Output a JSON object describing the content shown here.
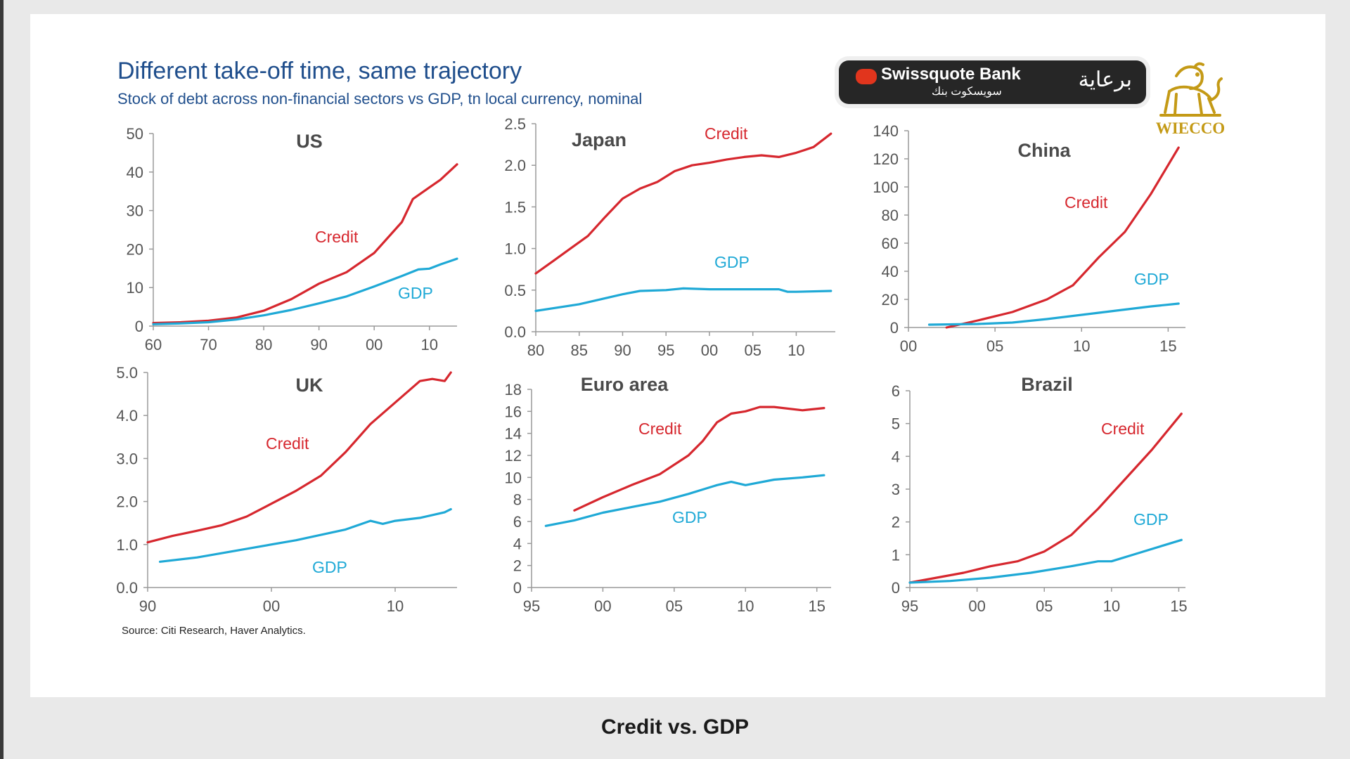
{
  "title": "Different take-off time, same trajectory",
  "subtitle": "Stock of debt across non-financial sectors vs GDP, tn local currency, nominal",
  "source": "Source: Citi Research, Haver Analytics.",
  "caption": "Credit vs. GDP",
  "sponsor": {
    "brand": "Swissquote Bank",
    "brand_arabic": "سويسكوت بنك",
    "sponsor_word": "برعاية"
  },
  "logo": {
    "text": "WIECCO",
    "icon": "lion-icon"
  },
  "colors": {
    "credit": "#d6272e",
    "gdp": "#1fa9d6",
    "title": "#1f4e8c"
  },
  "chart_data": [
    {
      "type": "line",
      "title": "US",
      "xlim": [
        60,
        115
      ],
      "ylim": [
        0,
        50
      ],
      "xticks": [
        [
          60,
          "60"
        ],
        [
          70,
          "70"
        ],
        [
          80,
          "80"
        ],
        [
          90,
          "90"
        ],
        [
          100,
          "00"
        ],
        [
          110,
          "10"
        ]
      ],
      "yticks": [
        [
          0,
          "0"
        ],
        [
          10,
          "10"
        ],
        [
          20,
          "20"
        ],
        [
          30,
          "30"
        ],
        [
          40,
          "40"
        ],
        [
          50,
          "50"
        ]
      ],
      "series": [
        {
          "name": "Credit",
          "x": [
            60,
            65,
            70,
            75,
            80,
            85,
            90,
            95,
            100,
            105,
            107,
            110,
            112,
            115
          ],
          "values": [
            0.8,
            1,
            1.4,
            2.2,
            4,
            7,
            11,
            14,
            19,
            27,
            33,
            36,
            38,
            42
          ]
        },
        {
          "name": "GDP",
          "x": [
            60,
            65,
            70,
            75,
            80,
            85,
            90,
            95,
            100,
            105,
            108,
            110,
            112,
            115
          ],
          "values": [
            0.5,
            0.7,
            1,
            1.7,
            2.8,
            4.2,
            5.9,
            7.7,
            10.3,
            13,
            14.7,
            14.9,
            16,
            17.5
          ]
        }
      ]
    },
    {
      "type": "line",
      "title": "Japan",
      "xlim": [
        80,
        114.5
      ],
      "ylim": [
        0,
        2.5
      ],
      "xticks": [
        [
          80,
          "80"
        ],
        [
          85,
          "85"
        ],
        [
          90,
          "90"
        ],
        [
          95,
          "95"
        ],
        [
          100,
          "00"
        ],
        [
          105,
          "05"
        ],
        [
          110,
          "10"
        ]
      ],
      "yticks": [
        [
          0,
          "0.0"
        ],
        [
          0.5,
          "0.5"
        ],
        [
          1,
          "1.0"
        ],
        [
          1.5,
          "1.5"
        ],
        [
          2,
          "2.0"
        ],
        [
          2.5,
          "2.5"
        ]
      ],
      "series": [
        {
          "name": "Credit",
          "x": [
            80,
            82,
            84,
            86,
            88,
            90,
            92,
            94,
            96,
            98,
            100,
            102,
            104,
            106,
            108,
            110,
            112,
            114
          ],
          "values": [
            0.7,
            0.85,
            1,
            1.15,
            1.38,
            1.6,
            1.72,
            1.8,
            1.93,
            2.0,
            2.03,
            2.07,
            2.1,
            2.12,
            2.1,
            2.15,
            2.22,
            2.38
          ]
        },
        {
          "name": "GDP",
          "x": [
            80,
            85,
            90,
            92,
            95,
            97,
            100,
            105,
            108,
            109,
            110,
            114
          ],
          "values": [
            0.25,
            0.33,
            0.45,
            0.49,
            0.5,
            0.52,
            0.51,
            0.51,
            0.51,
            0.48,
            0.48,
            0.49
          ]
        }
      ]
    },
    {
      "type": "line",
      "title": "China",
      "xlim": [
        0,
        16
      ],
      "ylim": [
        0,
        140
      ],
      "xticks": [
        [
          0,
          "00"
        ],
        [
          5,
          "05"
        ],
        [
          10,
          "10"
        ],
        [
          15,
          "15"
        ]
      ],
      "yticks": [
        [
          0,
          "0"
        ],
        [
          20,
          "20"
        ],
        [
          40,
          "40"
        ],
        [
          60,
          "60"
        ],
        [
          80,
          "80"
        ],
        [
          100,
          "100"
        ],
        [
          120,
          "120"
        ],
        [
          140,
          "140"
        ]
      ],
      "series": [
        {
          "name": "Credit",
          "x": [
            2.2,
            4,
            6,
            8,
            9.5,
            11,
            12.5,
            14,
            15.6
          ],
          "values": [
            0,
            5,
            11,
            20,
            30,
            50,
            68,
            95,
            128
          ]
        },
        {
          "name": "GDP",
          "x": [
            1.2,
            4,
            6,
            8,
            10,
            12,
            14,
            15.6
          ],
          "values": [
            2,
            2.5,
            3.5,
            6,
            9,
            12,
            15,
            17
          ]
        }
      ]
    },
    {
      "type": "line",
      "title": "UK",
      "xlim": [
        90,
        115
      ],
      "ylim": [
        0,
        5
      ],
      "xticks": [
        [
          90,
          "90"
        ],
        [
          100,
          "00"
        ],
        [
          110,
          "10"
        ]
      ],
      "yticks": [
        [
          0,
          "0.0"
        ],
        [
          1,
          "1.0"
        ],
        [
          2,
          "2.0"
        ],
        [
          3,
          "3.0"
        ],
        [
          4,
          "4.0"
        ],
        [
          5,
          "5.0"
        ]
      ],
      "series": [
        {
          "name": "Credit",
          "x": [
            90,
            92,
            94,
            96,
            98,
            100,
            102,
            104,
            106,
            108,
            110,
            112,
            113,
            114,
            114.5
          ],
          "values": [
            1.05,
            1.2,
            1.32,
            1.45,
            1.65,
            1.95,
            2.25,
            2.6,
            3.15,
            3.8,
            4.3,
            4.8,
            4.85,
            4.8,
            5.0
          ]
        },
        {
          "name": "GDP",
          "x": [
            91,
            94,
            98,
            102,
            106,
            108,
            109,
            110,
            112,
            114,
            114.5
          ],
          "values": [
            0.6,
            0.7,
            0.9,
            1.1,
            1.35,
            1.55,
            1.48,
            1.55,
            1.62,
            1.75,
            1.82
          ]
        }
      ]
    },
    {
      "type": "line",
      "title": "Euro area",
      "xlim": [
        95,
        116
      ],
      "ylim": [
        0,
        18
      ],
      "xticks": [
        [
          95,
          "95"
        ],
        [
          100,
          "00"
        ],
        [
          105,
          "05"
        ],
        [
          110,
          "10"
        ],
        [
          115,
          "15"
        ]
      ],
      "yticks": [
        [
          0,
          "0"
        ],
        [
          2,
          "2"
        ],
        [
          4,
          "4"
        ],
        [
          6,
          "6"
        ],
        [
          8,
          "8"
        ],
        [
          10,
          "10"
        ],
        [
          12,
          "12"
        ],
        [
          14,
          "14"
        ],
        [
          16,
          "16"
        ],
        [
          18,
          "18"
        ]
      ],
      "series": [
        {
          "name": "Credit",
          "x": [
            98,
            100,
            102,
            104,
            106,
            107,
            108,
            109,
            110,
            111,
            112,
            114,
            115.5
          ],
          "values": [
            7,
            8.2,
            9.3,
            10.3,
            12,
            13.3,
            15,
            15.8,
            16,
            16.4,
            16.4,
            16.1,
            16.3
          ]
        },
        {
          "name": "GDP",
          "x": [
            96,
            98,
            100,
            102,
            104,
            106,
            108,
            109,
            110,
            112,
            114,
            115.5
          ],
          "values": [
            5.6,
            6.1,
            6.8,
            7.3,
            7.8,
            8.5,
            9.3,
            9.6,
            9.3,
            9.8,
            10,
            10.2
          ]
        }
      ]
    },
    {
      "type": "line",
      "title": "Brazil",
      "xlim": [
        95,
        115.5
      ],
      "ylim": [
        0,
        6
      ],
      "xticks": [
        [
          95,
          "95"
        ],
        [
          100,
          "00"
        ],
        [
          105,
          "05"
        ],
        [
          110,
          "10"
        ],
        [
          115,
          "15"
        ]
      ],
      "yticks": [
        [
          0,
          "0"
        ],
        [
          1,
          "1"
        ],
        [
          2,
          "2"
        ],
        [
          3,
          "3"
        ],
        [
          4,
          "4"
        ],
        [
          5,
          "5"
        ],
        [
          6,
          "6"
        ]
      ],
      "series": [
        {
          "name": "Credit",
          "x": [
            95,
            97,
            99,
            101,
            103,
            105,
            107,
            109,
            111,
            113,
            115.2
          ],
          "values": [
            0.15,
            0.3,
            0.45,
            0.65,
            0.8,
            1.1,
            1.6,
            2.4,
            3.3,
            4.2,
            5.3
          ]
        },
        {
          "name": "GDP",
          "x": [
            95,
            98,
            101,
            104,
            107,
            109,
            110,
            112,
            114,
            115.2
          ],
          "values": [
            0.15,
            0.2,
            0.3,
            0.45,
            0.65,
            0.8,
            0.8,
            1.05,
            1.3,
            1.45
          ]
        }
      ]
    }
  ],
  "labels": {
    "credit": "Credit",
    "gdp": "GDP"
  }
}
